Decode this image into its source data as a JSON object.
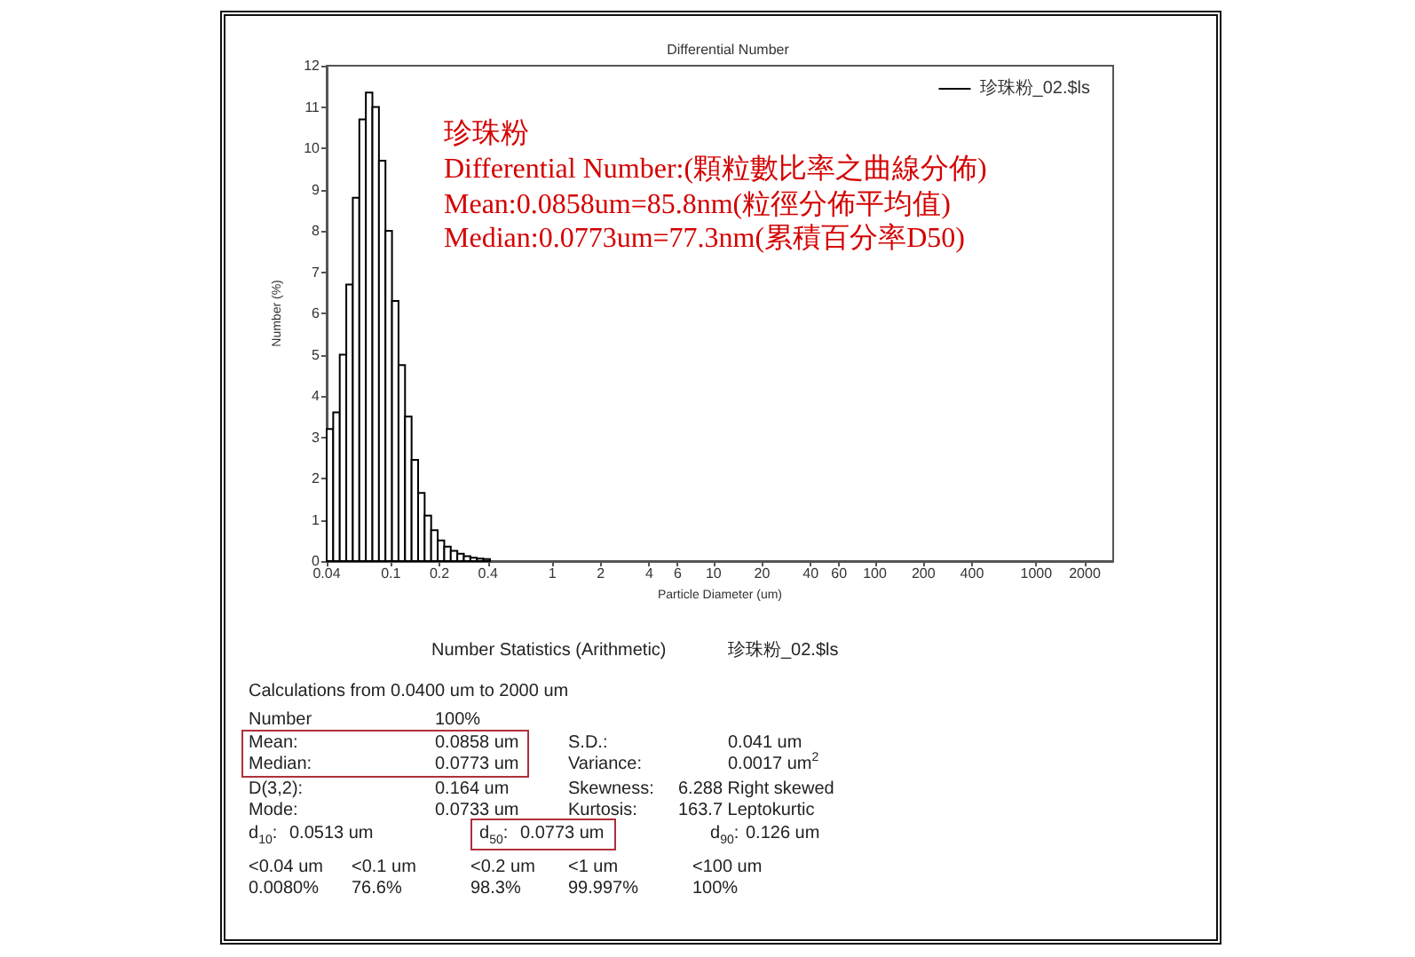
{
  "chart_data": {
    "type": "histogram",
    "title": "Differential Number",
    "xlabel": "Particle Diameter (um)",
    "ylabel": "Number (%)",
    "bins": [
      0.04,
      0.04391,
      0.0482,
      0.05291,
      0.05808,
      0.06375,
      0.06998,
      0.07682,
      0.08432,
      0.09256,
      0.1016,
      0.1115,
      0.1224,
      0.1344,
      0.1475,
      0.1619,
      0.1777,
      0.1951,
      0.2142,
      0.2351,
      0.2581,
      0.2833,
      0.311,
      0.3414,
      0.3747,
      0.4113,
      0.4515,
      0.4956,
      0.5441
    ],
    "series": [
      {
        "name": "珍珠粉_02.$ls",
        "color": "#000000",
        "values": [
          3.2,
          3.6,
          5.0,
          6.7,
          8.8,
          10.7,
          11.35,
          11.0,
          9.7,
          8.0,
          6.3,
          4.75,
          3.5,
          2.45,
          1.65,
          1.1,
          0.75,
          0.5,
          0.35,
          0.25,
          0.18,
          0.12,
          0.08,
          0.06,
          0.05,
          null,
          null,
          null
        ]
      }
    ],
    "log": "x",
    "xlim": [
      0.04,
      3000
    ],
    "xticks": [
      0.04,
      0.1,
      0.2,
      0.4,
      1,
      2,
      4,
      6,
      10,
      20,
      40,
      60,
      100,
      200,
      400,
      1000,
      2000
    ],
    "ylim": [
      0,
      12
    ],
    "yticks": [
      0,
      1,
      2,
      3,
      4,
      5,
      6,
      7,
      8,
      9,
      10,
      11,
      12
    ],
    "grid": false,
    "legend": "top right",
    "annotations": [
      "珍珠粉",
      "Differential Number:(顆粒數比率之曲線分佈)",
      "Mean:0.0858um=85.8nm(粒徑分佈平均值)",
      "Median:0.0773um=77.3nm(累積百分率D50)",
      "Number Statistics (Arithmetic)",
      "珍珠粉_02.$ls",
      "Calculations from 0.0400 um to 2000 um",
      "Number",
      "100%",
      "Mean:",
      "0.0858 um",
      "Median:",
      "0.0773 um",
      "D(3,2):",
      "0.164 um",
      "Mode:",
      "0.0733 um",
      "S.D.:",
      "0.041 um",
      "Variance:",
      "0.0017 um$^{2}$",
      "Skewness:",
      "6.288 Right skewed",
      "Kurtosis:",
      "163.7 Leptokurtic",
      "d$_{10}$:",
      "0.0513 um",
      "d$_{50}$:",
      "0.0773 um",
      "d$_{90}$:",
      "0.126 um",
      "<0.04 um",
      "<0.1 um",
      "<0.2 um",
      "<1 um",
      "<100 um",
      "0.0080%",
      "76.6%",
      "98.3%",
      "99.997%",
      "100%"
    ]
  }
}
